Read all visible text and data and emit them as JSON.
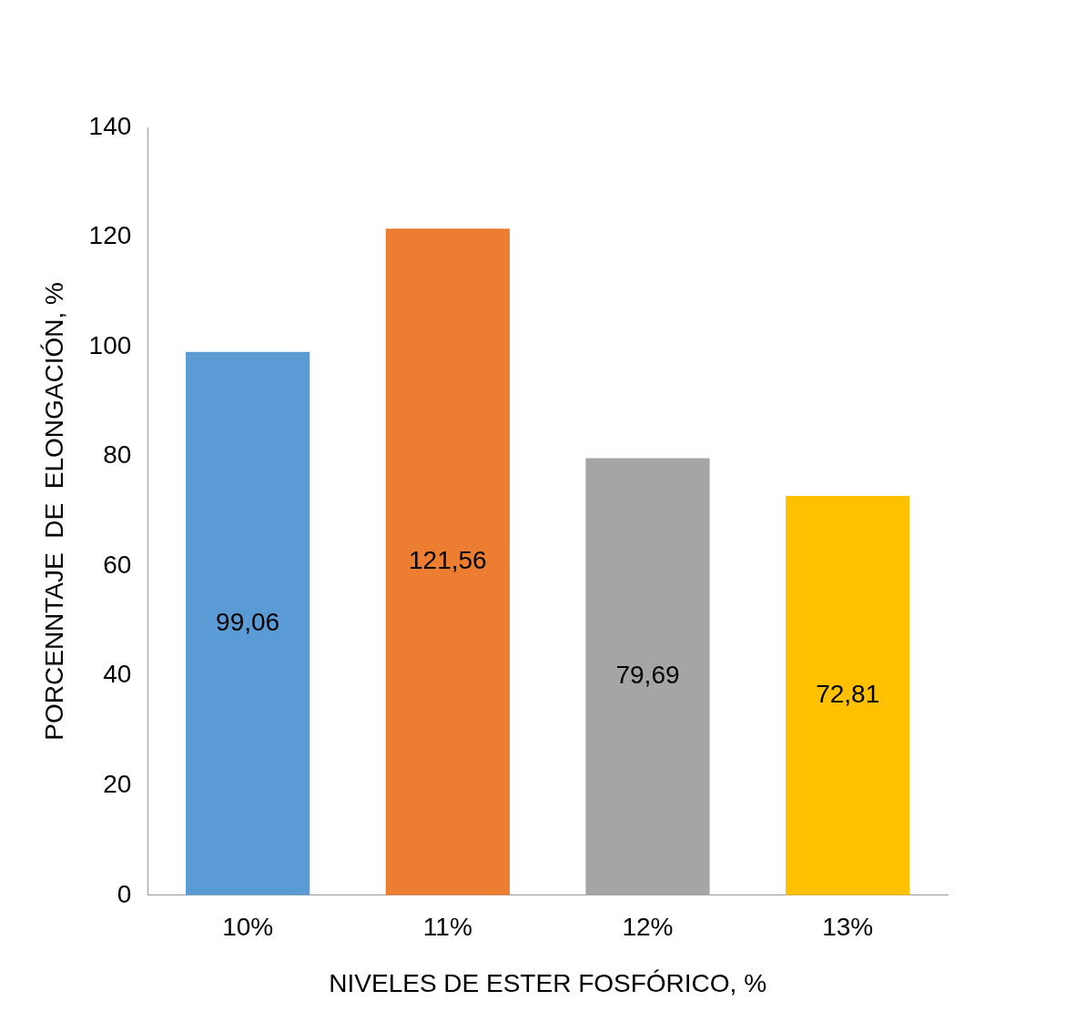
{
  "chart_data": {
    "type": "bar",
    "xlabel": "NIVELES DE ESTER FOSFÓRICO, %",
    "ylabel": "PORCENNTAJE  DE  ELONGACIÓN, %",
    "categories": [
      "10%",
      "11%",
      "12%",
      "13%"
    ],
    "values": [
      99.06,
      121.56,
      79.69,
      72.81
    ],
    "value_labels": [
      "99,06",
      "121,56",
      "79,69",
      "72,81"
    ],
    "colors": [
      "#5b9bd5",
      "#ed7d31",
      "#a5a5a5",
      "#ffc000"
    ],
    "ylim": [
      0,
      140
    ],
    "yticks": [
      0,
      20,
      40,
      60,
      80,
      100,
      120,
      140
    ],
    "grid": false,
    "legend": false
  }
}
